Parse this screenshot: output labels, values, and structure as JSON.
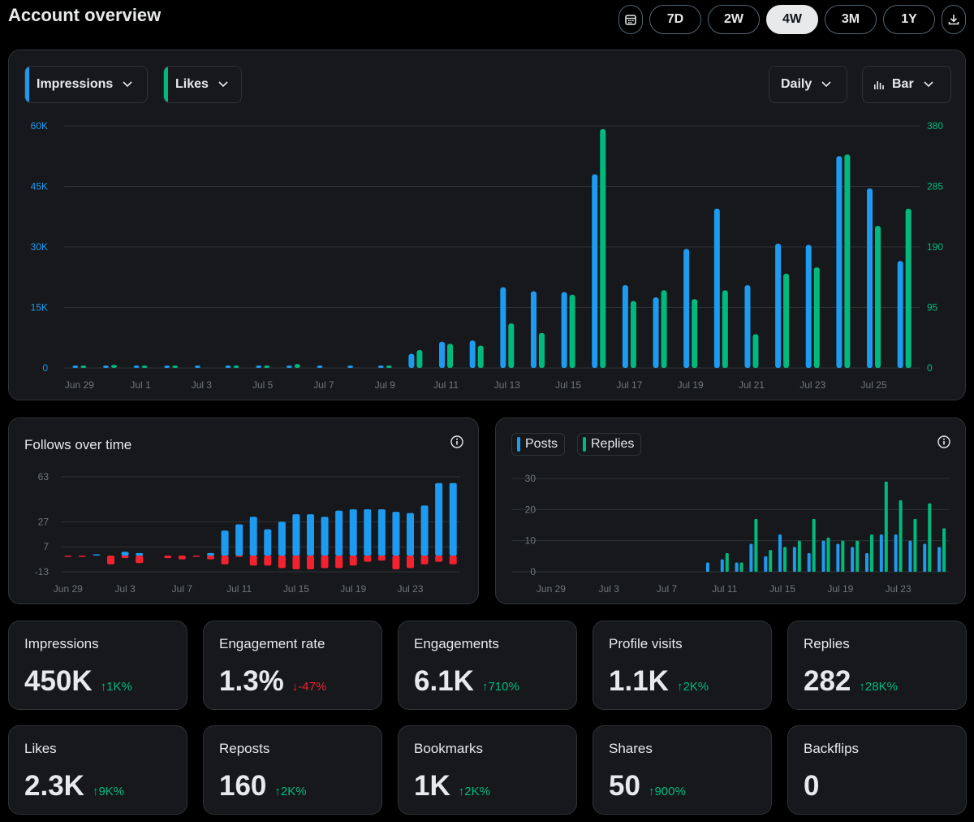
{
  "header": {
    "title": "Account overview",
    "ranges": [
      "7D",
      "2W",
      "4W",
      "3M",
      "1Y"
    ],
    "active_range": "4W"
  },
  "main_chart": {
    "metric1": "Impressions",
    "metric2": "Likes",
    "interval": "Daily",
    "chart_type": "Bar",
    "colors": {
      "metric1": "#1d9bf0",
      "metric2": "#00ba7c"
    }
  },
  "follows": {
    "title": "Follows over time"
  },
  "posts_chart": {
    "legend1": "Posts",
    "legend2": "Replies"
  },
  "stats": [
    {
      "label": "Impressions",
      "value": "450K",
      "delta": "1K%",
      "dir": "up"
    },
    {
      "label": "Engagement rate",
      "value": "1.3%",
      "delta": "-47%",
      "dir": "down"
    },
    {
      "label": "Engagements",
      "value": "6.1K",
      "delta": "710%",
      "dir": "up"
    },
    {
      "label": "Profile visits",
      "value": "1.1K",
      "delta": "2K%",
      "dir": "up"
    },
    {
      "label": "Replies",
      "value": "282",
      "delta": "28K%",
      "dir": "up"
    },
    {
      "label": "Likes",
      "value": "2.3K",
      "delta": "9K%",
      "dir": "up"
    },
    {
      "label": "Reposts",
      "value": "160",
      "delta": "2K%",
      "dir": "up"
    },
    {
      "label": "Bookmarks",
      "value": "1K",
      "delta": "2K%",
      "dir": "up"
    },
    {
      "label": "Shares",
      "value": "50",
      "delta": "900%",
      "dir": "up"
    },
    {
      "label": "Backflips",
      "value": "0",
      "delta": "",
      "dir": "none"
    }
  ],
  "chart_data": [
    {
      "type": "bar",
      "title": "Impressions / Likes",
      "categories": [
        "Jun 29",
        "Jun 30",
        "Jul 1",
        "Jul 2",
        "Jul 3",
        "Jul 4",
        "Jul 5",
        "Jul 6",
        "Jul 7",
        "Jul 8",
        "Jul 9",
        "Jul 10",
        "Jul 11",
        "Jul 12",
        "Jul 13",
        "Jul 14",
        "Jul 15",
        "Jul 16",
        "Jul 17",
        "Jul 18",
        "Jul 19",
        "Jul 20",
        "Jul 21",
        "Jul 22",
        "Jul 23",
        "Jul 24",
        "Jul 25",
        "Jul 26"
      ],
      "x_tick_labels": [
        "Jun 29",
        "Jul 1",
        "Jul 3",
        "Jul 5",
        "Jul 7",
        "Jul 9",
        "Jul 11",
        "Jul 13",
        "Jul 15",
        "Jul 17",
        "Jul 19",
        "Jul 21",
        "Jul 23",
        "Jul 25"
      ],
      "y_ticks_left": [
        "0",
        "15K",
        "30K",
        "45K",
        "60K"
      ],
      "y_ticks_right": [
        "0",
        "95",
        "190",
        "285",
        "380"
      ],
      "ylim_left": [
        0,
        60000
      ],
      "ylim_right": [
        0,
        380
      ],
      "series": [
        {
          "name": "Impressions",
          "axis": "left",
          "values": [
            400,
            600,
            600,
            500,
            500,
            200,
            300,
            500,
            400,
            400,
            400,
            3500,
            6500,
            6800,
            20000,
            19000,
            18800,
            48000,
            20500,
            17500,
            29500,
            39500,
            20500,
            30800,
            30500,
            52500,
            44500,
            26500
          ]
        },
        {
          "name": "Likes",
          "axis": "right",
          "values": [
            2,
            5,
            3,
            2,
            0,
            2,
            2,
            6,
            0,
            0,
            2,
            28,
            38,
            35,
            70,
            55,
            115,
            375,
            105,
            122,
            108,
            122,
            53,
            148,
            158,
            335,
            223,
            250
          ]
        }
      ]
    },
    {
      "type": "bar",
      "title": "Follows over time",
      "categories": [
        "Jun 29",
        "Jun 30",
        "Jul 1",
        "Jul 2",
        "Jul 3",
        "Jul 4",
        "Jul 5",
        "Jul 6",
        "Jul 7",
        "Jul 8",
        "Jul 9",
        "Jul 10",
        "Jul 11",
        "Jul 12",
        "Jul 13",
        "Jul 14",
        "Jul 15",
        "Jul 16",
        "Jul 17",
        "Jul 18",
        "Jul 19",
        "Jul 20",
        "Jul 21",
        "Jul 22",
        "Jul 23",
        "Jul 24",
        "Jul 25",
        "Jul 26"
      ],
      "x_tick_labels": [
        "Jun 29",
        "Jul 3",
        "Jul 7",
        "Jul 11",
        "Jul 15",
        "Jul 19",
        "Jul 23"
      ],
      "y_ticks": [
        "-13",
        "7",
        "27",
        "63"
      ],
      "ylim": [
        -13,
        63
      ],
      "series": [
        {
          "name": "Follows",
          "values": [
            0,
            0,
            1,
            0,
            3,
            2,
            0,
            0,
            0,
            0,
            2,
            20,
            25,
            31,
            21,
            27,
            33,
            33,
            31,
            36,
            37,
            37,
            37,
            35,
            34,
            40,
            58,
            58
          ]
        },
        {
          "name": "Unfollows",
          "values": [
            -1,
            -1,
            0,
            -7,
            -2,
            -6,
            0,
            -2,
            -3,
            -1,
            -3,
            -7,
            -1,
            -8,
            -8,
            -10,
            -11,
            -11,
            -10,
            -10,
            -8,
            -5,
            -4,
            -11,
            -10,
            -7,
            -5,
            -7
          ]
        }
      ]
    },
    {
      "type": "bar",
      "title": "Posts / Replies",
      "categories": [
        "Jun 29",
        "Jun 30",
        "Jul 1",
        "Jul 2",
        "Jul 3",
        "Jul 4",
        "Jul 5",
        "Jul 6",
        "Jul 7",
        "Jul 8",
        "Jul 9",
        "Jul 10",
        "Jul 11",
        "Jul 12",
        "Jul 13",
        "Jul 14",
        "Jul 15",
        "Jul 16",
        "Jul 17",
        "Jul 18",
        "Jul 19",
        "Jul 20",
        "Jul 21",
        "Jul 22",
        "Jul 23",
        "Jul 24",
        "Jul 25",
        "Jul 26"
      ],
      "x_tick_labels": [
        "Jun 29",
        "Jul 3",
        "Jul 7",
        "Jul 11",
        "Jul 15",
        "Jul 19",
        "Jul 23"
      ],
      "y_ticks": [
        "0",
        "10",
        "20",
        "30"
      ],
      "ylim": [
        0,
        30
      ],
      "series": [
        {
          "name": "Posts",
          "values": [
            0,
            0,
            0,
            0,
            0,
            0,
            0,
            0,
            0,
            0,
            0,
            3,
            4,
            3,
            9,
            5,
            12,
            8,
            6,
            10,
            9,
            8,
            6,
            12,
            12,
            10,
            9,
            8
          ]
        },
        {
          "name": "Replies",
          "values": [
            0,
            0,
            0,
            0,
            0,
            0,
            0,
            0,
            0,
            0,
            0,
            0,
            6,
            3,
            17,
            7,
            8,
            10,
            17,
            11,
            10,
            10,
            12,
            29,
            23,
            17,
            22,
            14
          ]
        }
      ]
    }
  ]
}
